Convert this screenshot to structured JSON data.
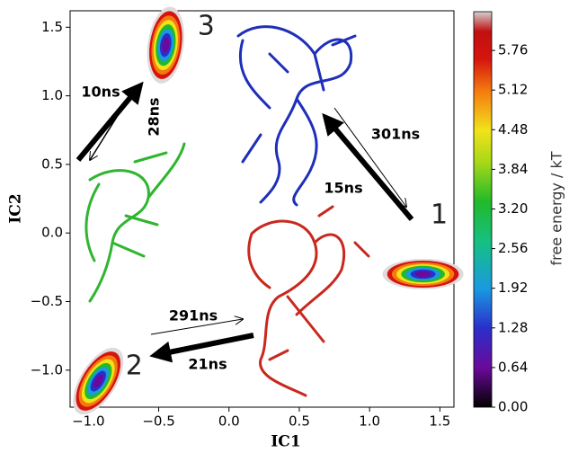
{
  "chart_data": {
    "type": "free-energy-map",
    "x_label": "IC1",
    "y_label": "IC2",
    "colorbar_label": "free energy / kT",
    "xlim": [
      -1.13,
      1.6
    ],
    "ylim": [
      -1.27,
      1.62
    ],
    "clim": [
      0,
      6.4
    ],
    "xticks": [
      {
        "value": -1.0,
        "label": "−1.0"
      },
      {
        "value": -0.5,
        "label": "−0.5"
      },
      {
        "value": 0,
        "label": "0.0"
      },
      {
        "value": 0.5,
        "label": "0.5"
      },
      {
        "value": 1.0,
        "label": "1.0"
      },
      {
        "value": 1.5,
        "label": "1.5"
      }
    ],
    "yticks": [
      {
        "value": -1.0,
        "label": "−1.0"
      },
      {
        "value": -0.5,
        "label": "−0.5"
      },
      {
        "value": 0,
        "label": "0.0"
      },
      {
        "value": 0.5,
        "label": "0.5"
      },
      {
        "value": 1.0,
        "label": "1.0"
      },
      {
        "value": 1.5,
        "label": "1.5"
      }
    ],
    "cticks": [
      {
        "value": 0,
        "label": "0.00"
      },
      0.64,
      1.28,
      1.92,
      2.56,
      {
        "value": 3.2,
        "label": "3.20"
      },
      3.84,
      4.48,
      5.12,
      5.76
    ],
    "states": [
      {
        "label": "1",
        "x": 1.38,
        "y": -0.3
      },
      {
        "label": "2",
        "x": -0.93,
        "y": -1.08
      },
      {
        "label": "3",
        "x": -0.45,
        "y": 1.37
      }
    ],
    "transitions": [
      "10ns",
      "28ns",
      "301ns",
      "15ns",
      "291ns",
      "21ns"
    ]
  }
}
